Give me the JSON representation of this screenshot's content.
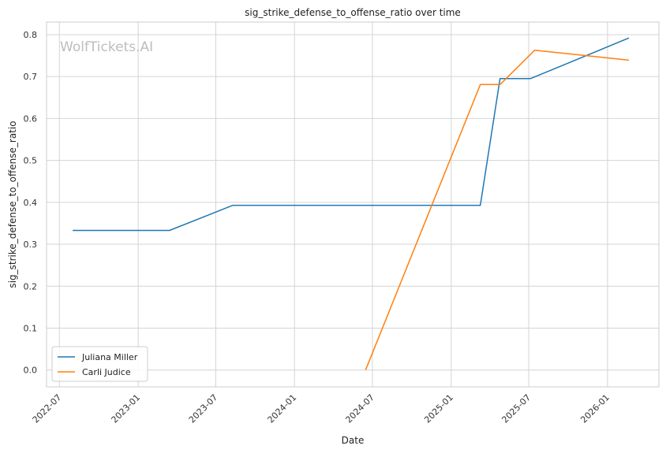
{
  "chart_data": {
    "type": "line",
    "title": "sig_strike_defense_to_offense_ratio over time",
    "xlabel": "Date",
    "ylabel": "sig_strike_defense_to_offense_ratio",
    "watermark": "WolfTickets.AI",
    "x_ticks": [
      "2022-07",
      "2023-01",
      "2023-07",
      "2024-01",
      "2024-07",
      "2025-01",
      "2025-07",
      "2026-01"
    ],
    "y_ticks": [
      "0.0",
      "0.1",
      "0.2",
      "0.3",
      "0.4",
      "0.5",
      "0.6",
      "0.7",
      "0.8"
    ],
    "xlim": [
      "2022-06-01",
      "2026-05-01"
    ],
    "ylim": [
      -0.04,
      0.83
    ],
    "grid": true,
    "legend_position": "lower-left",
    "series": [
      {
        "name": "Juliana Miller",
        "color": "#1f77b4",
        "points": [
          {
            "date": "2022-08-01",
            "value": 0.333
          },
          {
            "date": "2023-03-15",
            "value": 0.333
          },
          {
            "date": "2023-08-10",
            "value": 0.393
          },
          {
            "date": "2025-03-10",
            "value": 0.393
          },
          {
            "date": "2025-04-25",
            "value": 0.695
          },
          {
            "date": "2025-07-05",
            "value": 0.695
          },
          {
            "date": "2026-02-20",
            "value": 0.792
          }
        ]
      },
      {
        "name": "Carli Judice",
        "color": "#ff7f0e",
        "points": [
          {
            "date": "2024-06-15",
            "value": 0.0
          },
          {
            "date": "2025-03-10",
            "value": 0.681
          },
          {
            "date": "2025-04-25",
            "value": 0.681
          },
          {
            "date": "2025-07-15",
            "value": 0.763
          },
          {
            "date": "2026-02-20",
            "value": 0.739
          }
        ]
      }
    ]
  }
}
